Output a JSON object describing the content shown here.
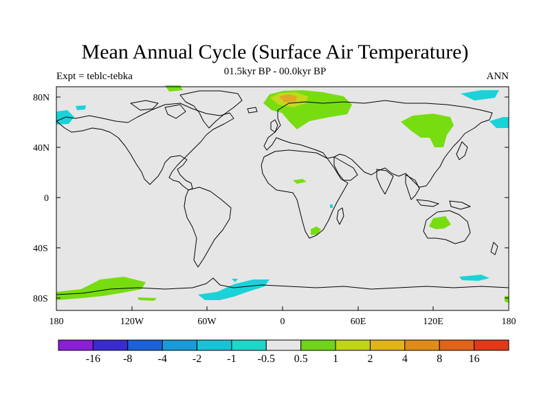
{
  "title": "Mean Annual Cycle (Surface Air Temperature)",
  "subtitle": "01.5kyr BP - 00.0kyr BP",
  "left_label": "Expt = teblc-tebka",
  "right_label": "ANN",
  "map": {
    "projection": "cylindrical equidistant",
    "lon_range": [
      -180,
      180
    ],
    "lat_range": [
      -90,
      90
    ],
    "lon_ticks": [
      "180",
      "120W",
      "60W",
      "0",
      "60E",
      "120E",
      "180"
    ],
    "lat_ticks": [
      "80N",
      "40N",
      "0",
      "40S",
      "80S"
    ],
    "background_color": "#e6e6e6",
    "coastline_color": "#000000"
  },
  "colorbar": {
    "colors": [
      "#8a1fd6",
      "#3a2bd0",
      "#1a62d6",
      "#1a9ad6",
      "#1ac2d6",
      "#20d6c8",
      "#e6e6e6",
      "#6fd41a",
      "#c2d41a",
      "#e0b41a",
      "#e08c1a",
      "#e0641a",
      "#e03a1a"
    ],
    "labels": [
      "-16",
      "-8",
      "-4",
      "-2",
      "-1",
      "-0.5",
      "0.5",
      "1",
      "2",
      "4",
      "8",
      "16"
    ]
  },
  "colors": {
    "green": "#77dd11",
    "cyan": "#19d3d9",
    "light_green": "#8de040",
    "yellow_green": "#c4d81d",
    "orange": "#e0a62a"
  }
}
